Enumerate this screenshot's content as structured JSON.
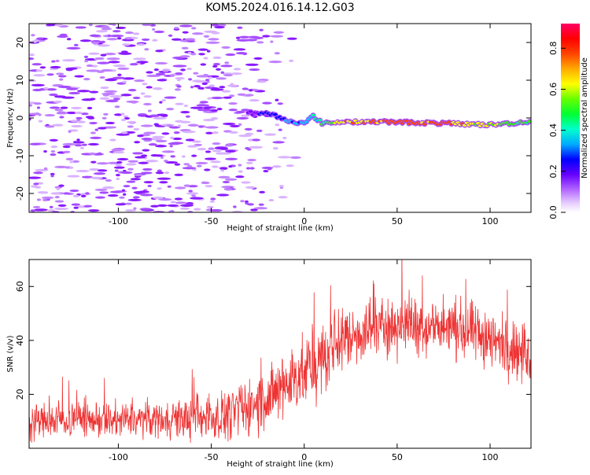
{
  "chart_data": [
    {
      "type": "heatmap",
      "title": "KOM5.2024.016.14.12.G03",
      "xlabel": "Height of straight line (km)",
      "ylabel": "Frequency (Hz)",
      "xlim": [
        -148,
        122
      ],
      "ylim": [
        -25,
        25
      ],
      "x_ticks": [
        -100,
        -50,
        0,
        50,
        100
      ],
      "y_ticks": [
        -20,
        -10,
        0,
        10,
        20
      ],
      "grid": false,
      "colorbar": {
        "label": "Normalized spectral amplitude",
        "range": [
          0,
          0.92
        ],
        "ticks": [
          0.0,
          0.2,
          0.4,
          0.6,
          0.8
        ],
        "colors": [
          "#f2f2f2",
          "#d9b3ff",
          "#8000ff",
          "#0000ff",
          "#00ccff",
          "#00ff66",
          "#33ff00",
          "#ccff00",
          "#ffcc00",
          "#ff6600",
          "#ff0000",
          "#ff0066"
        ]
      },
      "signal_track": {
        "x": [
          -30,
          -25,
          -20,
          -15,
          -10,
          -5,
          0,
          5,
          10,
          20,
          40,
          60,
          80,
          100,
          122
        ],
        "y": [
          1.5,
          1.0,
          1.5,
          0.5,
          -0.5,
          -1.0,
          -1.5,
          0.5,
          -1.5,
          -1.0,
          -1.0,
          -1.2,
          -1.5,
          -1.8,
          -1.0
        ],
        "amplitude": [
          0.25,
          0.3,
          0.35,
          0.35,
          0.4,
          0.45,
          0.4,
          0.5,
          0.6,
          0.75,
          0.85,
          0.85,
          0.8,
          0.7,
          0.6
        ]
      }
    },
    {
      "type": "line",
      "title": "",
      "xlabel": "Height of straight line (km)",
      "ylabel": "SNR (v/v)",
      "xlim": [
        -148,
        122
      ],
      "ylim": [
        0,
        70
      ],
      "x_ticks": [
        -100,
        -50,
        0,
        50,
        100
      ],
      "y_ticks": [
        20,
        40,
        60
      ],
      "grid": false,
      "series": [
        {
          "color": "#ee3333",
          "envelope": {
            "x": [
              -148,
              -120,
              -100,
              -80,
              -60,
              -45,
              -35,
              -25,
              -15,
              -10,
              -5,
              0,
              5,
              10,
              15,
              20,
              30,
              40,
              50,
              60,
              70,
              80,
              90,
              100,
              110,
              122
            ],
            "mean": [
              10,
              11,
              10,
              11,
              11,
              12,
              14,
              17,
              20,
              24,
              27,
              28,
              30,
              33,
              37,
              40,
              43,
              45,
              46,
              46,
              45,
              44,
              43,
              40,
              38,
              33
            ],
            "spread": [
              6,
              6,
              6,
              6,
              7,
              8,
              9,
              10,
              11,
              12,
              12,
              12,
              12,
              12,
              11,
              11,
              10,
              10,
              10,
              10,
              10,
              10,
              10,
              10,
              10,
              9
            ]
          }
        }
      ]
    }
  ]
}
